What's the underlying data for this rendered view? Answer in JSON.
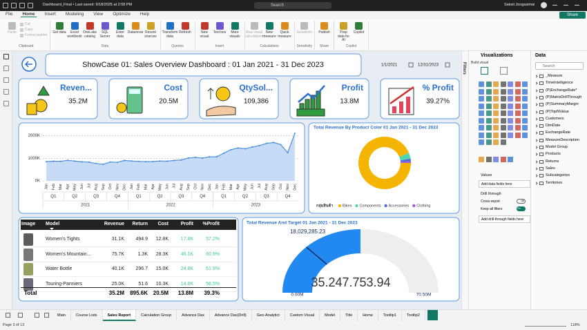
{
  "titlebar": {
    "file": "Dashboard_Final • Last saved: 9/18/2025 at 2:58 PM",
    "search": "Search",
    "user": "Saksit Jongsaimai",
    "share": "Share"
  },
  "ribbon": {
    "tabs": [
      "File",
      "Home",
      "Insert",
      "Modeling",
      "View",
      "Optimize",
      "Help"
    ],
    "groups": [
      {
        "label": "Clipboard",
        "buttons": [
          "Paste",
          "Cut",
          "Copy",
          "Format painter"
        ]
      },
      {
        "label": "Data",
        "buttons": [
          "Get data",
          "Excel workbook",
          "OneLake catalog",
          "SQL Server",
          "Enter data",
          "Dataverse",
          "Recent sources"
        ]
      },
      {
        "label": "Queries",
        "buttons": [
          "Transform data",
          "Refresh"
        ]
      },
      {
        "label": "Insert",
        "buttons": [
          "New visual",
          "Text box",
          "More visuals"
        ]
      },
      {
        "label": "Calculations",
        "buttons": [
          "New visual calculations",
          "New measure",
          "Quick measure"
        ]
      },
      {
        "label": "Sensitivity",
        "buttons": [
          "Sensitivity"
        ]
      },
      {
        "label": "Share",
        "buttons": [
          "Publish"
        ]
      },
      {
        "label": "Copilot",
        "buttons": [
          "Prep data for AI",
          "Copilot"
        ]
      }
    ]
  },
  "dashboard": {
    "title": "ShowCase 01: Sales Overview Dashboard : 01 Jan 2021 - 31 Dec 2023",
    "start_date": "1/1/2021",
    "end_date": "12/31/2023",
    "kpis": [
      {
        "label": "Reven...",
        "value": "35.2M"
      },
      {
        "label": "Cost",
        "value": "20.5M"
      },
      {
        "label": "QtySol...",
        "value": "109,386"
      },
      {
        "label": "Profit",
        "value": "13.8M"
      },
      {
        "label": "% Profit",
        "value": "39.27%"
      }
    ]
  },
  "table": {
    "columns": [
      "Image",
      "Model",
      "Revenue",
      "Return",
      "Cost",
      "Profit",
      "%Profit"
    ],
    "rows": [
      [
        "Women's Tights",
        "31.1K",
        "494.9",
        "12.8K",
        "17.8K",
        "57.2%"
      ],
      [
        "Women's Mountain...",
        "75.7K",
        "1.3K",
        "28.3K",
        "46.1K",
        "60.9%"
      ],
      [
        "Water Bottle",
        "40.1K",
        "296.7",
        "15.0K",
        "24.8K",
        "61.9%"
      ],
      [
        "Touring-Panniers",
        "25.0K",
        "51.6",
        "10.3K",
        "14.6K",
        "58.5%"
      ]
    ],
    "total": [
      "Total",
      "35.2M",
      "895.6K",
      "20.5M",
      "13.8M",
      "39.3%"
    ]
  },
  "chart_data": [
    {
      "type": "area",
      "color": "#4a8fe0",
      "categories": [
        "Jan",
        "Feb",
        "Mar",
        "Apr",
        "May",
        "Jun",
        "Jul",
        "Aug",
        "Sep",
        "Oct",
        "Nov",
        "Dec",
        "Jan",
        "Feb",
        "Mar",
        "Apr",
        "May",
        "Jun",
        "Jul",
        "Aug",
        "Sep",
        "Oct",
        "Nov",
        "Dec",
        "Jan",
        "Feb",
        "Mar",
        "Apr",
        "May",
        "Jun",
        "Jul",
        "Aug",
        "Sep",
        "Oct",
        "Nov",
        "Dec"
      ],
      "quarters": [
        "Q1",
        "Q2",
        "Q3",
        "Q4",
        "Q1",
        "Q2",
        "Q3",
        "Q4",
        "Q1",
        "Q2",
        "Q3",
        "Q4"
      ],
      "years": [
        "2021",
        "2022",
        "2023"
      ],
      "values": [
        848000,
        870000,
        864000,
        908000,
        875000,
        845000,
        830000,
        770000,
        735000,
        835000,
        820000,
        905000,
        880000,
        862000,
        850000,
        855000,
        880000,
        870000,
        905000,
        925000,
        1010000,
        1040000,
        1010000,
        1065000,
        1070000,
        1225000,
        1380000,
        1455000,
        1420000,
        1500000,
        1560000,
        1660000,
        1700000,
        1610000,
        1250000,
        2100000
      ],
      "ylim": [
        0,
        2200000
      ],
      "yticks": [
        {
          "value": 0,
          "label": "0K"
        },
        {
          "value": 1000000,
          "label": "1000K"
        },
        {
          "value": 2000000,
          "label": "2000K"
        }
      ],
      "grid": true
    },
    {
      "type": "donut",
      "title": "Total Revenue By Product Color 01 Jan 2021 - 31 Dec 2023",
      "legend_title": "กลุ่มสินค้า",
      "categories": [
        "Bikes",
        "Components",
        "Accessories",
        "Clothing"
      ],
      "values": [
        33000000,
        1300000,
        600000,
        300000
      ],
      "colors": [
        "#f5b400",
        "#4fd6b0",
        "#5867dd",
        "#a35ae0"
      ]
    },
    {
      "type": "gauge",
      "title": "Total Revenue And Target 01 Jan 2021 - 31 Dec 2023",
      "value": 35247753.94,
      "value_label": "35.247.753.94",
      "target": 18029285.23,
      "target_label": "18,029,285.23",
      "ylim": [
        0,
        70500000
      ],
      "yticks": [
        {
          "value": 0,
          "label": "0.00M"
        },
        {
          "value": 70500000,
          "label": "70.50M"
        }
      ],
      "color": "#2189f0"
    }
  ],
  "filters_label": "Filters",
  "visualizations": {
    "title": "Visualizations",
    "build": "Build visual",
    "values_label": "Values",
    "values_placeholder": "Add data fields here",
    "drill_title": "Drill through",
    "cross_report": "Cross-report",
    "cross_state": "Off",
    "keep_filters": "Keep all filters",
    "keep_state": "On",
    "drill_placeholder": "Add drill-through fields here"
  },
  "data_pane": {
    "title": "Data",
    "search": "Search",
    "items": [
      "_Measure",
      "TimeIntelligence",
      "(P)ExchangeRate*",
      "(P)MatrixDrillThrough",
      "(P)SummaryMargin",
      "(P)TopNValue",
      "Customers",
      "DimDate",
      "ExchangeRate",
      "MeasureDescription",
      "Model Group",
      "Products",
      "Returns",
      "Sales",
      "Subcategories",
      "Territories"
    ]
  },
  "pages": {
    "tabs": [
      "Main",
      "Course Lists",
      "Sales Report",
      "Calculation Group",
      "Advance Dax",
      "Advance Dax(Drill)",
      "Geo-Analytict",
      "Custom Visual",
      "Model",
      "Title",
      "Home",
      "Tooltip1",
      "Tooltip2"
    ],
    "status": "Page 3 of 13",
    "zoom": "118%"
  }
}
